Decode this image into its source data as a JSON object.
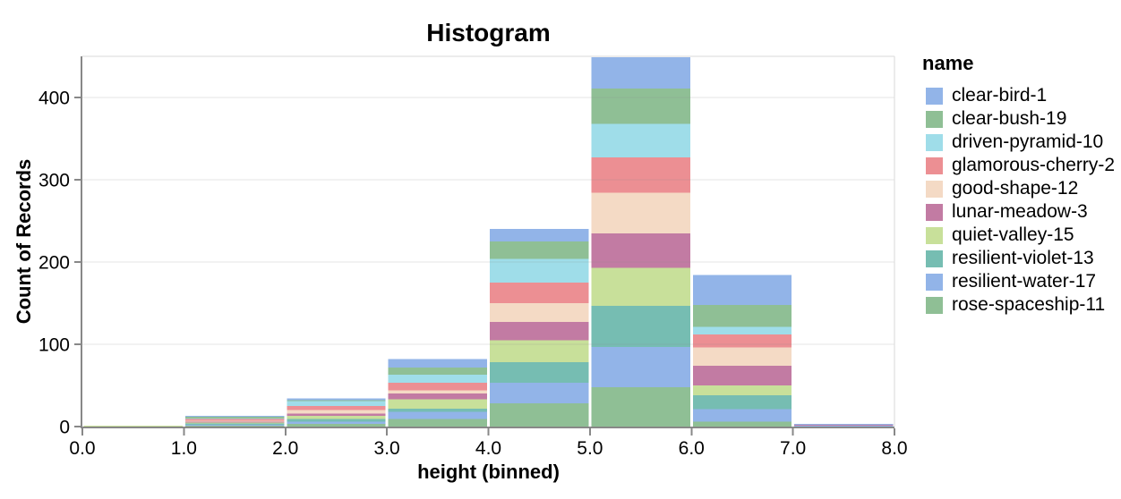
{
  "title": "Histogram",
  "x_axis": {
    "title": "height (binned)",
    "tick_labels": [
      "0.0",
      "1.0",
      "2.0",
      "3.0",
      "4.0",
      "5.0",
      "6.0",
      "7.0",
      "8.0"
    ],
    "tick_values": [
      0,
      1,
      2,
      3,
      4,
      5,
      6,
      7,
      8
    ]
  },
  "y_axis": {
    "title": "Count of Records",
    "tick_labels": [
      "0",
      "100",
      "200",
      "300",
      "400"
    ],
    "tick_values": [
      0,
      100,
      200,
      300,
      400
    ]
  },
  "legend": {
    "title": "name"
  },
  "colors": {
    "axis_line": "#888888",
    "gridline": "#dddddd",
    "grid_over_bars": "rgba(136,136,136,0.22)",
    "view_border": "#d9d9d9",
    "text": "#000000",
    "background": "#ffffff"
  },
  "chart_data": {
    "type": "bar",
    "subtype": "stacked-histogram",
    "title": "Histogram",
    "xlabel": "height (binned)",
    "ylabel": "Count of Records",
    "legend_title": "name",
    "legend_position": "right",
    "grid": true,
    "bin_edges": [
      0,
      1,
      2,
      3,
      4,
      5,
      6,
      7,
      8
    ],
    "xlim": [
      0,
      8
    ],
    "ylim": [
      0,
      450
    ],
    "stack_note": "stacked bottom-to-top in reverse legend order (clear-bird-1 is the top segment)",
    "series": [
      {
        "name": "clear-bird-1",
        "color": "#92b4e8",
        "values": [
          0,
          1,
          2,
          10,
          15,
          38,
          36,
          1
        ]
      },
      {
        "name": "clear-bush-19",
        "color": "#8fbf95",
        "values": [
          0,
          2,
          1,
          9,
          21,
          43,
          27,
          0
        ]
      },
      {
        "name": "driven-pyramid-10",
        "color": "#9fdde9",
        "values": [
          0,
          1,
          6,
          10,
          29,
          41,
          9,
          0
        ]
      },
      {
        "name": "glamorous-cherry-2",
        "color": "#ec8f93",
        "values": [
          0,
          2,
          5,
          9,
          25,
          43,
          16,
          0
        ]
      },
      {
        "name": "good-shape-12",
        "color": "#f4dac5",
        "values": [
          0,
          1,
          4,
          4,
          23,
          49,
          22,
          0
        ]
      },
      {
        "name": "lunar-meadow-3",
        "color": "#c27ba3",
        "values": [
          0,
          1,
          3,
          7,
          22,
          42,
          24,
          1
        ]
      },
      {
        "name": "quiet-valley-15",
        "color": "#c8e09a",
        "values": [
          1,
          1,
          4,
          11,
          27,
          46,
          12,
          0
        ]
      },
      {
        "name": "resilient-violet-13",
        "color": "#76bdb2",
        "values": [
          0,
          2,
          3,
          4,
          25,
          50,
          17,
          0
        ]
      },
      {
        "name": "resilient-water-17",
        "color": "#92b4e8",
        "values": [
          0,
          1,
          3,
          9,
          25,
          49,
          15,
          1
        ]
      },
      {
        "name": "rose-spaceship-11",
        "color": "#8fbf95",
        "values": [
          0,
          1,
          3,
          9,
          28,
          48,
          6,
          0
        ]
      }
    ],
    "bin_totals": [
      1,
      13,
      34,
      82,
      240,
      449,
      184,
      3
    ]
  }
}
